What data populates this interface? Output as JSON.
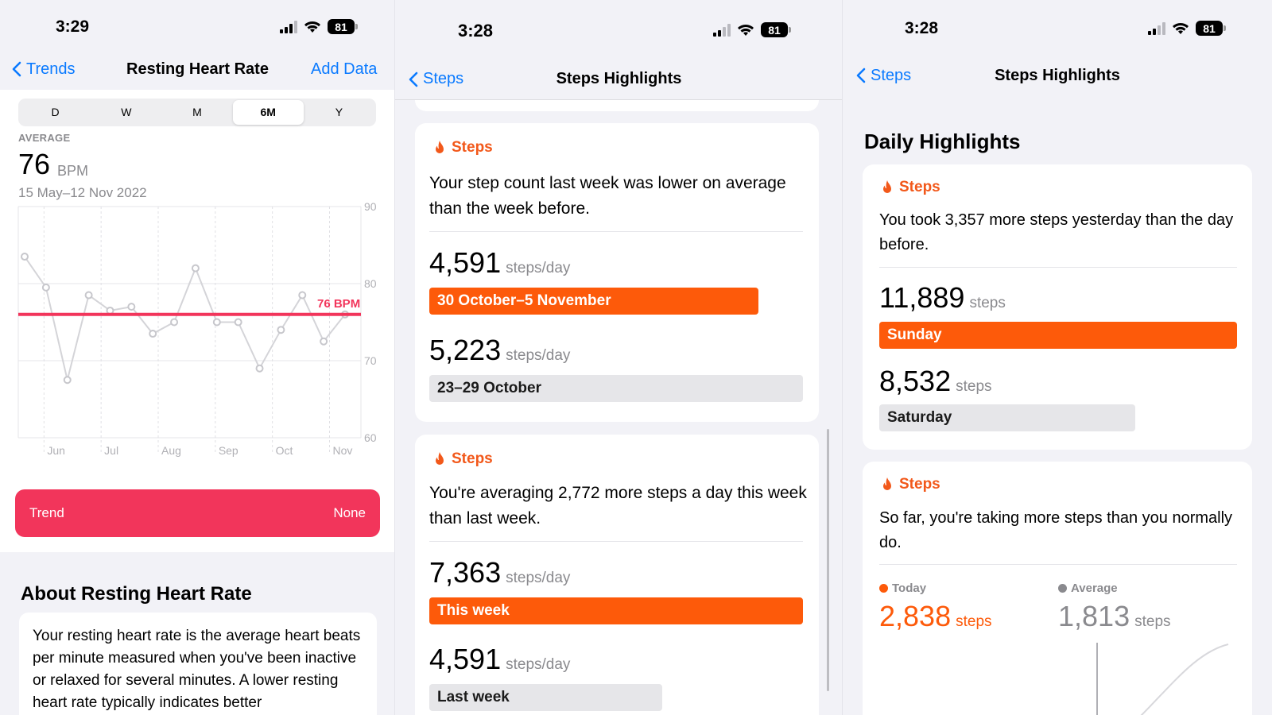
{
  "status": {
    "panel1_time": "3:29",
    "panel2_time": "3:28",
    "panel3_time": "3:28",
    "battery": "81"
  },
  "panel1": {
    "nav": {
      "back_label": "Trends",
      "title": "Resting Heart Rate",
      "action_label": "Add Data"
    },
    "segments": [
      "D",
      "W",
      "M",
      "6M",
      "Y"
    ],
    "selected_segment": "6M",
    "average_label": "AVERAGE",
    "average_value": "76",
    "average_unit": "BPM",
    "date_range": "15 May–12 Nov 2022",
    "trend": {
      "label": "Trend",
      "value": "None"
    },
    "about": {
      "title": "About Resting Heart Rate",
      "body": "Your resting heart rate is the average heart beats per minute measured when you've been inactive or relaxed for several minutes. A lower resting heart rate typically indicates better"
    }
  },
  "chart_data": {
    "type": "line",
    "x_labels": [
      "Jun",
      "Jul",
      "Aug",
      "Sep",
      "Oct",
      "Nov"
    ],
    "y_ticks": [
      90,
      80,
      70,
      60
    ],
    "ylim": [
      60,
      90
    ],
    "average_line": {
      "value": 76,
      "label": "76 BPM",
      "color": "#f2355b"
    },
    "series": [
      {
        "values": [
          83.5,
          79.5,
          67.5,
          78.5,
          76.5,
          77,
          73.5,
          75,
          82,
          75,
          75,
          69,
          74,
          78.5,
          72.5,
          76
        ]
      }
    ]
  },
  "panel2": {
    "nav": {
      "back_label": "Steps",
      "title": "Steps Highlights"
    },
    "cards": [
      {
        "header": "Steps",
        "text": "Your step count last week was lower on average than the week before.",
        "rows": [
          {
            "value": "4,591",
            "unit": "steps/day",
            "label": "30 October–5 November",
            "bar_fraction": 0.88,
            "style": "orange"
          },
          {
            "value": "5,223",
            "unit": "steps/day",
            "label": "23–29 October",
            "bar_fraction": 1.0,
            "style": "grey"
          }
        ]
      },
      {
        "header": "Steps",
        "text": "You're averaging 2,772 more steps a day this week than last week.",
        "rows": [
          {
            "value": "7,363",
            "unit": "steps/day",
            "label": "This week",
            "bar_fraction": 1.0,
            "style": "orange"
          },
          {
            "value": "4,591",
            "unit": "steps/day",
            "label": "Last week",
            "bar_fraction": 0.62,
            "style": "grey"
          }
        ]
      }
    ]
  },
  "panel3": {
    "nav": {
      "back_label": "Steps",
      "title": "Steps Highlights"
    },
    "section_title": "Daily Highlights",
    "card1": {
      "header": "Steps",
      "text": "You took 3,357 more steps yesterday than the day before.",
      "rows": [
        {
          "value": "11,889",
          "unit": "steps",
          "label": "Sunday",
          "bar_fraction": 1.0,
          "style": "orange"
        },
        {
          "value": "8,532",
          "unit": "steps",
          "label": "Saturday",
          "bar_fraction": 0.72,
          "style": "grey"
        }
      ]
    },
    "card2": {
      "header": "Steps",
      "text": "So far, you're taking more steps than you normally do.",
      "today": {
        "label": "Today",
        "value": "2,838",
        "unit": "steps",
        "color": "#fd5a0a"
      },
      "average": {
        "label": "Average",
        "value": "1,813",
        "unit": "steps",
        "color": "#8a8a8e"
      }
    }
  },
  "colors": {
    "accent_blue": "#0a7aff",
    "steps_orange": "#fd5a0a",
    "heart_pink": "#f2355b"
  }
}
